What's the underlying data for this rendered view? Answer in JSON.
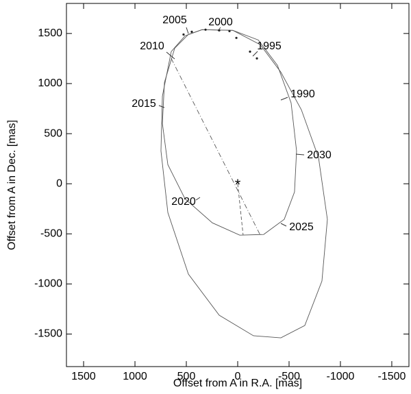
{
  "chart_data": {
    "type": "line",
    "xlabel": "Offset from A in R.A. [mas]",
    "ylabel": "Offset from A in Dec. [mas]",
    "xlim": [
      1667,
      -1667
    ],
    "ylim": [
      -1825,
      1800
    ],
    "xticks": [
      1500,
      1000,
      500,
      0,
      -500,
      -1000,
      -1500
    ],
    "yticks": [
      -1500,
      -1000,
      -500,
      0,
      500,
      1000,
      1500
    ],
    "series": [
      {
        "linestyle": "solid",
        "color": "#555555",
        "x": [
          347,
          47,
          -200,
          -387,
          -520,
          -573,
          -553,
          -453,
          -253,
          -20,
          247,
          513,
          680,
          733,
          713,
          613,
          480,
          347
        ],
        "y": [
          1538,
          1531,
          1435,
          1182,
          807,
          328,
          -82,
          -355,
          -506,
          -513,
          -390,
          -150,
          191,
          601,
          1012,
          1353,
          1490,
          1538
        ]
      },
      {
        "linestyle": "solid",
        "color": "#555555",
        "x": [
          347,
          47,
          -220,
          -420,
          -620,
          -787,
          -873,
          -820,
          -653,
          -420,
          -153,
          180,
          480,
          680,
          747,
          733,
          647,
          513,
          347
        ],
        "y": [
          1538,
          1531,
          1388,
          1114,
          738,
          260,
          -355,
          -971,
          -1415,
          -1538,
          -1517,
          -1312,
          -902,
          -287,
          328,
          875,
          1319,
          1476,
          1538
        ]
      },
      {
        "linestyle": "dashdot",
        "color": "#555555",
        "x": [
          647,
          -220
        ],
        "y": [
          1251,
          -513
        ]
      },
      {
        "linestyle": "dashed",
        "color": "#555555",
        "x": [
          0,
          -53
        ],
        "y": [
          0,
          -513
        ]
      }
    ],
    "points": {
      "color": "#222222",
      "x": [
        527,
        447,
        313,
        180,
        80,
        13,
        -120,
        -187
      ],
      "y": [
        1490,
        1517,
        1538,
        1531,
        1524,
        1456,
        1319,
        1251
      ]
    },
    "primary": {
      "marker": "*",
      "x": 0,
      "y": 0
    },
    "annotations": [
      "2005",
      "2000",
      "2010",
      "1995",
      "1990",
      "2015",
      "2030",
      "2020",
      "2025"
    ]
  }
}
